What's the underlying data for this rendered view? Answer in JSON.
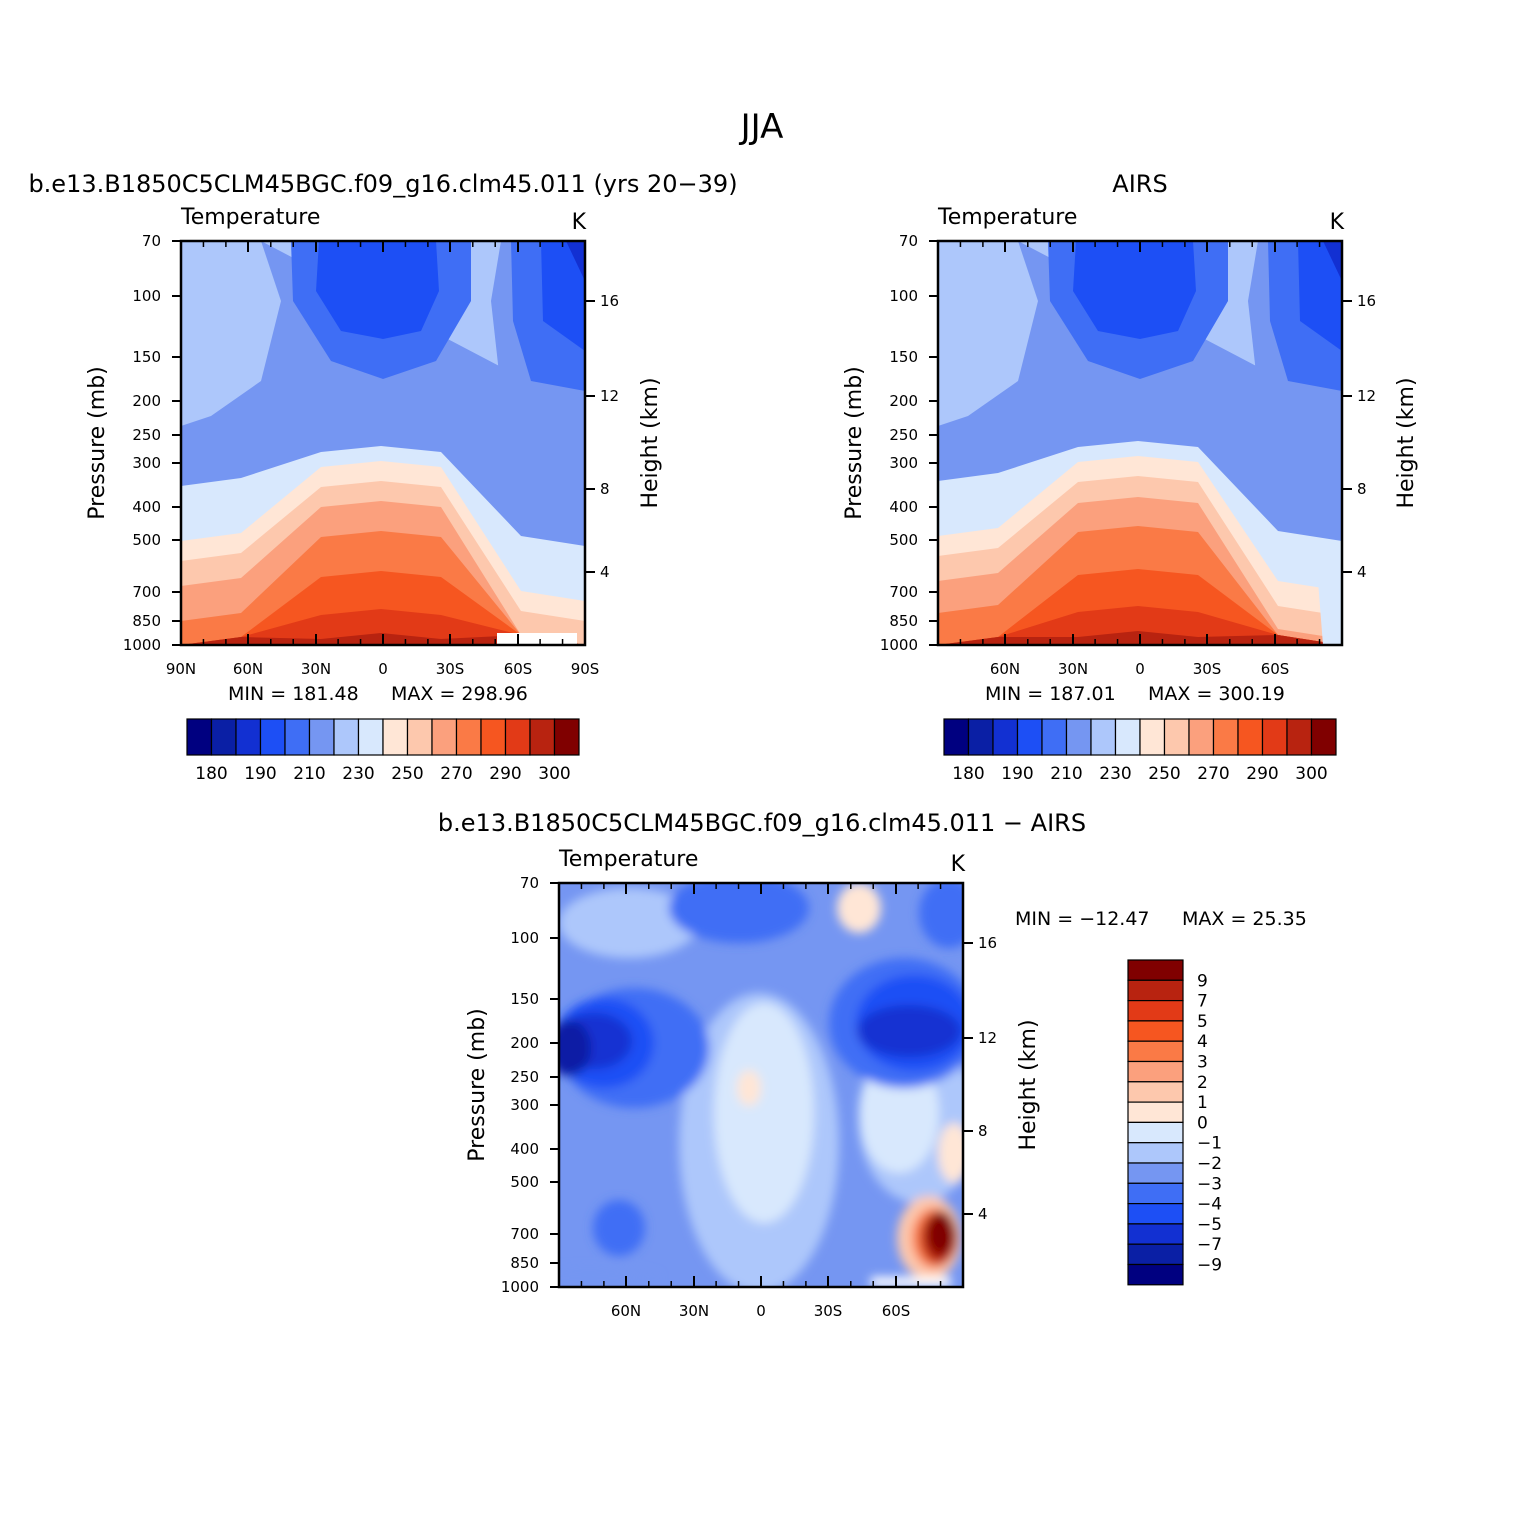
{
  "figure": {
    "title": "JJA",
    "colors": {
      "abs": [
        "#000080",
        "#0a1fa5",
        "#1230d2",
        "#1d4ff5",
        "#3f6ef5",
        "#7596f2",
        "#adc7fb",
        "#d8e8fd",
        "#ffe6d6",
        "#fdc8ad",
        "#fba07d",
        "#fa7a46",
        "#f65620",
        "#e23a17",
        "#b82310",
        "#800000"
      ],
      "diff": [
        "#000080",
        "#0a1fa5",
        "#1230d2",
        "#1d4ff5",
        "#3f6ef5",
        "#7596f2",
        "#adc7fb",
        "#d8e8fd",
        "#ffe6d6",
        "#fdc8ad",
        "#fba07d",
        "#fa7a46",
        "#f65620",
        "#e23a17",
        "#b82310",
        "#800000"
      ]
    }
  },
  "chart_data": [
    {
      "type": "heatmap",
      "title": "b.e13.B1850C5CLM45BGC.f09_g16.clm45.011 (yrs 20−39)",
      "left_string": "Temperature",
      "right_string": "K",
      "ylabel": "Pressure  (mb)",
      "ylabel_right": "Height  (km)",
      "x_ticks": [
        "90N",
        "60N",
        "30N",
        "0",
        "30S",
        "60S",
        "90S"
      ],
      "y_ticks": [
        "70",
        "100",
        "150",
        "200",
        "250",
        "300",
        "400",
        "500",
        "700",
        "850",
        "1000"
      ],
      "height_ticks": [
        "16",
        "12",
        "8",
        "4"
      ],
      "min_label": "MIN = 181.48",
      "max_label": "MAX = 298.96",
      "min": 181.48,
      "max": 298.96,
      "colorbar_ticks": [
        "180",
        "190",
        "210",
        "230",
        "250",
        "270",
        "290",
        "300"
      ]
    },
    {
      "type": "heatmap",
      "title": "AIRS",
      "left_string": "Temperature",
      "right_string": "K",
      "ylabel": "Pressure  (mb)",
      "ylabel_right": "Height  (km)",
      "x_ticks": [
        "60N",
        "30N",
        "0",
        "30S",
        "60S"
      ],
      "y_ticks": [
        "70",
        "100",
        "150",
        "200",
        "250",
        "300",
        "400",
        "500",
        "700",
        "850",
        "1000"
      ],
      "height_ticks": [
        "16",
        "12",
        "8",
        "4"
      ],
      "min_label": "MIN = 187.01",
      "max_label": "MAX = 300.19",
      "min": 187.01,
      "max": 300.19,
      "colorbar_ticks": [
        "180",
        "190",
        "210",
        "230",
        "250",
        "270",
        "290",
        "300"
      ]
    },
    {
      "type": "heatmap",
      "title": "b.e13.B1850C5CLM45BGC.f09_g16.clm45.011 − AIRS",
      "left_string": "Temperature",
      "right_string": "K",
      "ylabel": "Pressure  (mb)",
      "ylabel_right": "Height  (km)",
      "x_ticks": [
        "60N",
        "30N",
        "0",
        "30S",
        "60S"
      ],
      "y_ticks": [
        "70",
        "100",
        "150",
        "200",
        "250",
        "300",
        "400",
        "500",
        "700",
        "850",
        "1000"
      ],
      "height_ticks": [
        "16",
        "12",
        "8",
        "4"
      ],
      "min_label": "MIN = −12.47",
      "max_label": "MAX =   25.35",
      "min": -12.47,
      "max": 25.35,
      "colorbar_ticks": [
        "9",
        "7",
        "5",
        "4",
        "3",
        "2",
        "1",
        "0",
        "−1",
        "−2",
        "−3",
        "−4",
        "−5",
        "−7",
        "−9"
      ]
    }
  ]
}
